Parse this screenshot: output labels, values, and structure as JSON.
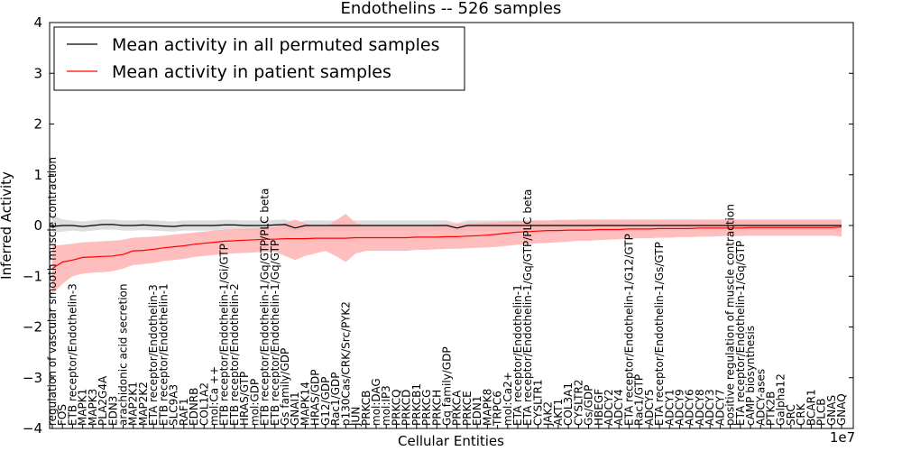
{
  "chart_data": {
    "type": "line",
    "title": "Endothelins -- 526 samples",
    "xlabel": "Cellular Entities",
    "ylabel": "Inferred Activity",
    "ylim": [
      -4,
      4
    ],
    "yticks": [
      "4",
      "3",
      "2",
      "1",
      "0",
      "−1",
      "−2",
      "−3",
      "−4"
    ],
    "x_offset_label": "1e7",
    "legend_position": "upper-left",
    "categories": [
      "regulation of vascular smooth muscle contraction",
      "FOS",
      "ETB receptor/Endothelin-3",
      "MAPK1",
      "MAPK3",
      "PLA2G4A",
      "EDN3",
      "arachidonic acid secretion",
      "MAP2K1",
      "MAP2K2",
      "ETA receptor/Endothelin-3",
      "ETB receptor/Endothelin-1",
      "SLC9A3",
      "RAF1",
      "EDNRB",
      "COL1A2",
      "mol:Ca ++",
      "ETB receptor/Endothelin-1/Gi/GTP",
      "ETB receptor/Endothelin-2",
      "HRAS/GTP",
      "mol:GDP",
      "ETB receptor/Endothelin-1/Gq/GTP/PLC beta",
      "ETB receptor/Endothelin-1/Gq/GTP",
      "Gs family/GDP",
      "GNAI1",
      "MAPK14",
      "HRAS/GDP",
      "G12/GDP",
      "Rac1/GDP",
      "p130Cas/CRK/Src/PYK2",
      "JUN",
      "PRKCB",
      "mol:DAG",
      "mol:IP3",
      "PRKCQ",
      "PRKCD",
      "PRKCB1",
      "PRKCG",
      "PRKCH",
      "Gq family/GDP",
      "PRKCA",
      "PRKCE",
      "EDN1",
      "MAPK8",
      "TRPC6",
      "mol:Ca2+",
      "ETA receptor/Endothelin-1",
      "ETA receptor/Endothelin-1/Gq/GTP/PLC beta",
      "CYSLTR1",
      "JAK2",
      "AKT1",
      "COL3A1",
      "CYSLTR2",
      "Gs/GDP",
      "HBEGF",
      "ADCY2",
      "ADCY4",
      "ETA receptor/Endothelin-1/G12/GTP",
      "Rac1/GTP",
      "ADCY5",
      "ETA receptor/Endothelin-1/Gs/GTP",
      "ADCY1",
      "ADCY9",
      "ADCY6",
      "ADCY8",
      "ADCY3",
      "ADCY7",
      "positive regulation of muscle contraction",
      "ETA receptor/Endothelin-1/Gq/GTP",
      "cAMP biosynthesis",
      "ADCY-ases",
      "PTK2B",
      "Galpha12",
      "SRC",
      "CRK",
      "BCAR1",
      "PLCB",
      "GNAS",
      "GNAQ"
    ],
    "series": [
      {
        "name": "Mean activity in all permuted samples",
        "color": "#000000",
        "band_color": "#bdbdbd",
        "values": [
          -0.02,
          0.0,
          0.0,
          -0.02,
          0.0,
          0.02,
          0.02,
          0.0,
          0.0,
          0.01,
          0.0,
          -0.01,
          -0.02,
          0.0,
          0.0,
          0.0,
          0.0,
          0.01,
          0.01,
          0.0,
          0.0,
          0.0,
          0.01,
          0.02,
          -0.05,
          0.0,
          0.0,
          0.0,
          0.0,
          0.0,
          0.0,
          0.0,
          0.0,
          0.0,
          0.0,
          0.0,
          0.0,
          0.0,
          0.0,
          0.0,
          -0.05,
          0.0,
          0.0,
          0.0,
          0.0,
          0.0,
          0.0,
          0.0,
          0.0,
          0.0,
          0.0,
          0.0,
          0.0,
          0.0,
          0.0,
          0.0,
          0.0,
          0.0,
          0.0,
          0.0,
          0.0,
          0.0,
          0.0,
          0.0,
          0.0,
          0.0,
          0.0,
          0.0,
          0.0,
          0.0,
          0.0,
          0.0,
          0.0,
          0.0,
          0.0,
          0.0,
          0.0,
          0.0,
          0.0
        ],
        "lower": [
          -0.15,
          -0.12,
          -0.1,
          -0.12,
          -0.1,
          -0.08,
          -0.08,
          -0.1,
          -0.1,
          -0.09,
          -0.1,
          -0.11,
          -0.12,
          -0.1,
          -0.1,
          -0.1,
          -0.1,
          -0.09,
          -0.09,
          -0.1,
          -0.1,
          -0.1,
          -0.09,
          -0.08,
          -0.15,
          -0.1,
          -0.1,
          -0.1,
          -0.1,
          -0.1,
          -0.1,
          -0.1,
          -0.1,
          -0.1,
          -0.1,
          -0.1,
          -0.1,
          -0.1,
          -0.1,
          -0.1,
          -0.15,
          -0.1,
          -0.1,
          -0.1,
          -0.1,
          -0.1,
          -0.1,
          -0.1,
          -0.1,
          -0.1,
          -0.1,
          -0.1,
          -0.1,
          -0.1,
          -0.1,
          -0.1,
          -0.1,
          -0.1,
          -0.1,
          -0.1,
          -0.1,
          -0.1,
          -0.1,
          -0.1,
          -0.1,
          -0.1,
          -0.1,
          -0.1,
          -0.1,
          -0.1,
          -0.1,
          -0.1,
          -0.1,
          -0.1,
          -0.1,
          -0.1,
          -0.1,
          -0.1,
          -0.12
        ],
        "upper": [
          0.2,
          0.12,
          0.1,
          0.08,
          0.1,
          0.12,
          0.12,
          0.1,
          0.1,
          0.11,
          0.1,
          0.09,
          0.08,
          0.1,
          0.1,
          0.1,
          0.1,
          0.11,
          0.11,
          0.1,
          0.1,
          0.1,
          0.11,
          0.12,
          0.05,
          0.1,
          0.1,
          0.1,
          0.1,
          0.1,
          0.1,
          0.1,
          0.1,
          0.1,
          0.1,
          0.1,
          0.1,
          0.1,
          0.1,
          0.1,
          0.05,
          0.1,
          0.1,
          0.1,
          0.1,
          0.1,
          0.1,
          0.1,
          0.1,
          0.1,
          0.1,
          0.1,
          0.1,
          0.1,
          0.1,
          0.1,
          0.1,
          0.1,
          0.1,
          0.1,
          0.1,
          0.1,
          0.1,
          0.1,
          0.1,
          0.1,
          0.1,
          0.1,
          0.1,
          0.1,
          0.1,
          0.1,
          0.1,
          0.1,
          0.1,
          0.1,
          0.1,
          0.1,
          0.08
        ]
      },
      {
        "name": "Mean activity in patient samples",
        "color": "#ff0000",
        "band_color": "#ffb3b3",
        "values": [
          -0.85,
          -0.72,
          -0.68,
          -0.63,
          -0.62,
          -0.61,
          -0.6,
          -0.57,
          -0.5,
          -0.49,
          -0.47,
          -0.44,
          -0.42,
          -0.4,
          -0.37,
          -0.35,
          -0.33,
          -0.31,
          -0.3,
          -0.29,
          -0.28,
          -0.27,
          -0.27,
          -0.26,
          -0.26,
          -0.26,
          -0.25,
          -0.25,
          -0.25,
          -0.25,
          -0.24,
          -0.24,
          -0.24,
          -0.24,
          -0.24,
          -0.24,
          -0.23,
          -0.23,
          -0.23,
          -0.22,
          -0.22,
          -0.21,
          -0.2,
          -0.19,
          -0.17,
          -0.15,
          -0.13,
          -0.12,
          -0.11,
          -0.1,
          -0.1,
          -0.09,
          -0.09,
          -0.09,
          -0.08,
          -0.08,
          -0.08,
          -0.07,
          -0.07,
          -0.07,
          -0.06,
          -0.06,
          -0.06,
          -0.06,
          -0.05,
          -0.05,
          -0.05,
          -0.05,
          -0.05,
          -0.04,
          -0.04,
          -0.04,
          -0.04,
          -0.04,
          -0.04,
          -0.04,
          -0.04,
          -0.04,
          -0.03
        ],
        "lower": [
          -1.35,
          -1.15,
          -1.0,
          -0.95,
          -0.93,
          -0.92,
          -0.9,
          -0.85,
          -0.78,
          -0.76,
          -0.74,
          -0.7,
          -0.68,
          -0.66,
          -0.62,
          -0.6,
          -0.58,
          -0.56,
          -0.55,
          -0.54,
          -0.53,
          -0.52,
          -0.52,
          -0.6,
          -0.68,
          -0.6,
          -0.55,
          -0.5,
          -0.6,
          -0.72,
          -0.55,
          -0.5,
          -0.5,
          -0.5,
          -0.5,
          -0.5,
          -0.48,
          -0.48,
          -0.47,
          -0.46,
          -0.46,
          -0.45,
          -0.44,
          -0.43,
          -0.42,
          -0.4,
          -0.38,
          -0.37,
          -0.35,
          -0.34,
          -0.33,
          -0.32,
          -0.3,
          -0.3,
          -0.29,
          -0.28,
          -0.27,
          -0.26,
          -0.25,
          -0.25,
          -0.24,
          -0.24,
          -0.23,
          -0.23,
          -0.22,
          -0.22,
          -0.21,
          -0.21,
          -0.21,
          -0.2,
          -0.2,
          -0.2,
          -0.2,
          -0.2,
          -0.2,
          -0.2,
          -0.2,
          -0.2,
          -0.22
        ],
        "upper": [
          -0.4,
          -0.38,
          -0.36,
          -0.33,
          -0.32,
          -0.31,
          -0.3,
          -0.28,
          -0.24,
          -0.23,
          -0.22,
          -0.2,
          -0.18,
          -0.16,
          -0.14,
          -0.12,
          -0.1,
          -0.08,
          -0.07,
          -0.06,
          -0.05,
          -0.04,
          -0.03,
          0.05,
          0.12,
          0.04,
          0.0,
          -0.02,
          0.1,
          0.23,
          0.05,
          0.0,
          0.0,
          0.0,
          0.0,
          0.0,
          0.01,
          0.01,
          0.02,
          0.03,
          0.03,
          0.04,
          0.05,
          0.06,
          0.07,
          0.08,
          0.09,
          0.09,
          0.1,
          0.1,
          0.11,
          0.11,
          0.12,
          0.12,
          0.12,
          0.12,
          0.12,
          0.12,
          0.12,
          0.12,
          0.12,
          0.12,
          0.12,
          0.12,
          0.12,
          0.12,
          0.12,
          0.12,
          0.12,
          0.12,
          0.12,
          0.12,
          0.12,
          0.12,
          0.12,
          0.12,
          0.12,
          0.12,
          0.12
        ]
      }
    ]
  }
}
